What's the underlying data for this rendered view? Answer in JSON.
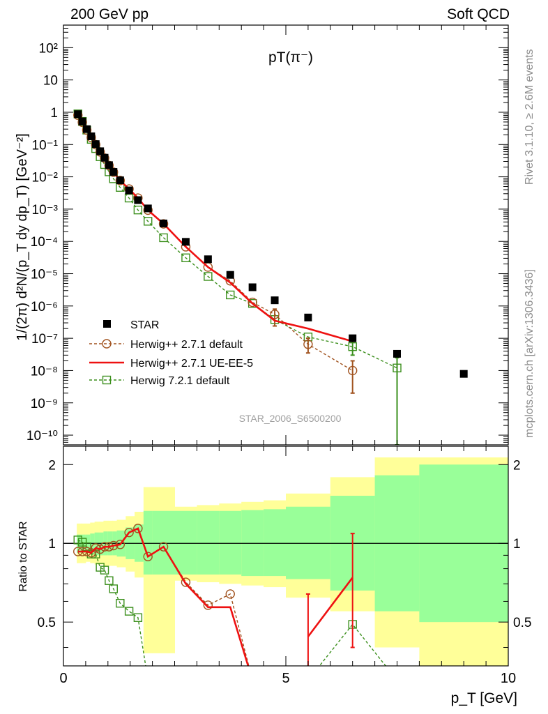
{
  "header": {
    "left": "200 GeV pp",
    "right": "Soft QCD",
    "side_top": "Rivet 3.1.10, ≥ 2.6M events",
    "side_bottom": "mcplots.cern.ch [arXiv:1306.3436]"
  },
  "chart_data": {
    "type": "scatter",
    "title": "pT(π⁻)",
    "watermark": "STAR_2006_S6500200",
    "xlabel": "p_T [GeV]",
    "ylabel": "1/(2π) d²N/(p_T dy dp_T) [GeV⁻²]",
    "ratio_ylabel": "Ratio to STAR",
    "xlim": [
      0,
      10
    ],
    "ylim": [
      5e-11,
      500
    ],
    "yscale": "log",
    "ratio_ylim": [
      0.34,
      2.35
    ],
    "ratio_yscale": "log",
    "x_ticks": [
      "0",
      "5",
      "10"
    ],
    "y_ticks": [
      "10⁻¹⁰",
      "10⁻⁹",
      "10⁻⁸",
      "10⁻⁷",
      "10⁻⁶",
      "10⁻⁵",
      "10⁻⁴",
      "10⁻³",
      "10⁻²",
      "10⁻¹",
      "1",
      "10",
      "10²"
    ],
    "ratio_ticks": [
      "0.5",
      "1",
      "2"
    ],
    "legend_position": "bottom-left",
    "colors": {
      "star": "#000000",
      "hw271": "#a0521e",
      "ueee5": "#ee1111",
      "hw721": "#3b8f1c",
      "band_inner": "#99ff99",
      "band_outer": "#ffff99"
    },
    "series": [
      {
        "name": "STAR",
        "style": "black-square",
        "x": [
          0.325,
          0.425,
          0.525,
          0.625,
          0.725,
          0.825,
          0.925,
          1.025,
          1.125,
          1.275,
          1.475,
          1.675,
          1.9,
          2.25,
          2.75,
          3.25,
          3.75,
          4.25,
          4.75,
          5.5,
          6.5,
          7.5,
          9.0
        ],
        "y": [
          0.87,
          0.52,
          0.3,
          0.18,
          0.103,
          0.062,
          0.039,
          0.023,
          0.0142,
          0.0078,
          0.0038,
          0.0019,
          0.00105,
          0.00036,
          9.7e-05,
          2.8e-05,
          9.2e-06,
          3.8e-06,
          1.5e-06,
          4.4e-07,
          1e-07,
          3.3e-08,
          7.9e-09
        ]
      },
      {
        "name": "Herwig++ 2.7.1 default",
        "style": "dashed-circle",
        "x": [
          0.325,
          0.425,
          0.525,
          0.625,
          0.725,
          0.825,
          0.925,
          1.025,
          1.125,
          1.275,
          1.475,
          1.675,
          1.9,
          2.25,
          2.75,
          3.25,
          3.75,
          4.25,
          4.75,
          5.5,
          6.5
        ],
        "y": [
          0.81,
          0.49,
          0.28,
          0.165,
          0.099,
          0.059,
          0.038,
          0.0224,
          0.0139,
          0.0077,
          0.0042,
          0.0022,
          0.00093,
          0.00035,
          6.8e-05,
          1.6e-05,
          6e-06,
          1.3e-06,
          5.5e-07,
          6.5e-08,
          1e-08
        ],
        "err_low": [
          null,
          null,
          null,
          null,
          null,
          null,
          null,
          null,
          null,
          null,
          null,
          null,
          null,
          null,
          null,
          null,
          null,
          null,
          2.4e-07,
          3.5e-08,
          2e-09
        ],
        "err_high": [
          null,
          null,
          null,
          null,
          null,
          null,
          null,
          null,
          null,
          null,
          null,
          null,
          null,
          null,
          null,
          null,
          null,
          null,
          8e-07,
          1e-07,
          2e-08
        ]
      },
      {
        "name": "Herwig++ 2.7.1 UE-EE-5",
        "style": "solid-line",
        "x": [
          0.325,
          0.425,
          0.525,
          0.625,
          0.725,
          0.825,
          0.925,
          1.025,
          1.125,
          1.275,
          1.475,
          1.675,
          1.9,
          2.25,
          2.75,
          3.25,
          3.75,
          4.25,
          4.75,
          5.5,
          6.5
        ],
        "y": [
          0.81,
          0.49,
          0.28,
          0.165,
          0.099,
          0.059,
          0.038,
          0.0224,
          0.0139,
          0.0077,
          0.0042,
          0.0022,
          0.00093,
          0.00035,
          6.8e-05,
          1.6e-05,
          5.3e-06,
          1.2e-06,
          3.5e-07,
          2e-07,
          8e-08
        ]
      },
      {
        "name": "Herwig 7.2.1 default",
        "style": "dashed-square",
        "x": [
          0.325,
          0.425,
          0.525,
          0.625,
          0.725,
          0.825,
          0.925,
          1.025,
          1.125,
          1.275,
          1.475,
          1.675,
          1.9,
          2.25,
          2.75,
          3.25,
          3.75,
          4.25,
          4.75,
          5.5,
          6.5,
          7.5
        ],
        "y": [
          0.89,
          0.52,
          0.28,
          0.145,
          0.075,
          0.042,
          0.024,
          0.0143,
          0.0087,
          0.0047,
          0.0022,
          0.00094,
          0.00042,
          0.00013,
          3.1e-05,
          8.2e-06,
          2.2e-06,
          1.2e-06,
          3.8e-07,
          1.1e-07,
          5.5e-08,
          1.2e-08
        ],
        "err_low": [
          null,
          null,
          null,
          null,
          null,
          null,
          null,
          null,
          null,
          null,
          null,
          null,
          null,
          null,
          null,
          null,
          null,
          null,
          null,
          null,
          3e-08,
          5e-11
        ],
        "err_high": [
          null,
          null,
          null,
          null,
          null,
          null,
          null,
          null,
          null,
          null,
          null,
          null,
          null,
          null,
          null,
          null,
          null,
          null,
          null,
          null,
          8e-08,
          2.5e-08
        ]
      }
    ],
    "ratio": {
      "bands": {
        "edges": [
          0.3,
          0.4,
          0.5,
          0.6,
          0.7,
          0.8,
          0.9,
          1.0,
          1.1,
          1.2,
          1.4,
          1.6,
          1.8,
          2.0,
          2.5,
          3.0,
          3.5,
          4.0,
          4.5,
          5.0,
          6.0,
          7.0,
          8.0,
          10.0
        ],
        "inner_low": [
          0.92,
          0.92,
          0.92,
          0.91,
          0.9,
          0.9,
          0.9,
          0.9,
          0.9,
          0.89,
          0.87,
          0.85,
          0.76,
          0.76,
          0.76,
          0.76,
          0.76,
          0.75,
          0.75,
          0.73,
          0.66,
          0.55,
          0.5
        ],
        "inner_high": [
          1.08,
          1.08,
          1.08,
          1.09,
          1.1,
          1.1,
          1.11,
          1.11,
          1.11,
          1.12,
          1.15,
          1.18,
          1.33,
          1.33,
          1.33,
          1.33,
          1.33,
          1.34,
          1.35,
          1.38,
          1.52,
          1.82,
          2.0
        ],
        "outer_low": [
          0.84,
          0.84,
          0.85,
          0.84,
          0.83,
          0.83,
          0.82,
          0.82,
          0.82,
          0.81,
          0.78,
          0.74,
          0.38,
          0.38,
          0.72,
          0.71,
          0.7,
          0.69,
          0.68,
          0.62,
          0.55,
          0.4,
          0.34
        ],
        "outer_high": [
          1.19,
          1.19,
          1.19,
          1.2,
          1.21,
          1.21,
          1.22,
          1.22,
          1.22,
          1.23,
          1.27,
          1.32,
          1.64,
          1.64,
          1.38,
          1.4,
          1.42,
          1.44,
          1.46,
          1.55,
          1.79,
          2.13,
          2.13
        ]
      },
      "series": [
        {
          "name": "Herwig++ 2.7.1 default",
          "x": [
            0.325,
            0.425,
            0.525,
            0.625,
            0.725,
            0.825,
            0.925,
            1.025,
            1.125,
            1.275,
            1.475,
            1.675,
            1.9,
            2.25,
            2.75,
            3.25,
            3.75,
            4.25
          ],
          "y": [
            0.93,
            0.93,
            0.93,
            0.92,
            0.96,
            0.95,
            0.97,
            0.97,
            0.98,
            0.99,
            1.1,
            1.14,
            0.89,
            0.97,
            0.71,
            0.58,
            0.64,
            0.3
          ]
        },
        {
          "name": "Herwig++ 2.7.1 UE-EE-5",
          "x": [
            0.325,
            0.425,
            0.525,
            0.625,
            0.725,
            0.825,
            0.925,
            1.025,
            1.125,
            1.275,
            1.475,
            1.675,
            1.9,
            2.25,
            2.75,
            3.25,
            3.75,
            4.25,
            5.5,
            6.5
          ],
          "y": [
            0.93,
            0.93,
            0.93,
            0.92,
            0.96,
            0.95,
            0.97,
            0.97,
            0.98,
            0.99,
            1.1,
            1.14,
            0.89,
            0.97,
            0.7,
            0.57,
            0.57,
            0.3,
            0.44,
            0.74
          ],
          "err_low": [
            null,
            null,
            null,
            null,
            null,
            null,
            null,
            null,
            null,
            null,
            null,
            null,
            null,
            null,
            null,
            null,
            null,
            null,
            0.3,
            0.4
          ],
          "err_high": [
            null,
            null,
            null,
            null,
            null,
            null,
            null,
            null,
            null,
            null,
            null,
            null,
            null,
            null,
            null,
            null,
            null,
            null,
            0.64,
            1.09
          ]
        },
        {
          "name": "Herwig 7.2.1 default",
          "x": [
            0.325,
            0.425,
            0.525,
            0.625,
            0.725,
            0.825,
            0.925,
            1.025,
            1.125,
            1.275,
            1.475,
            1.675,
            1.9,
            5.5,
            6.5,
            7.5
          ],
          "y": [
            1.03,
            1.01,
            0.97,
            0.91,
            0.91,
            0.81,
            0.79,
            0.72,
            0.67,
            0.59,
            0.55,
            0.52,
            0.3,
            0.3,
            0.49,
            0.3
          ]
        }
      ]
    }
  }
}
